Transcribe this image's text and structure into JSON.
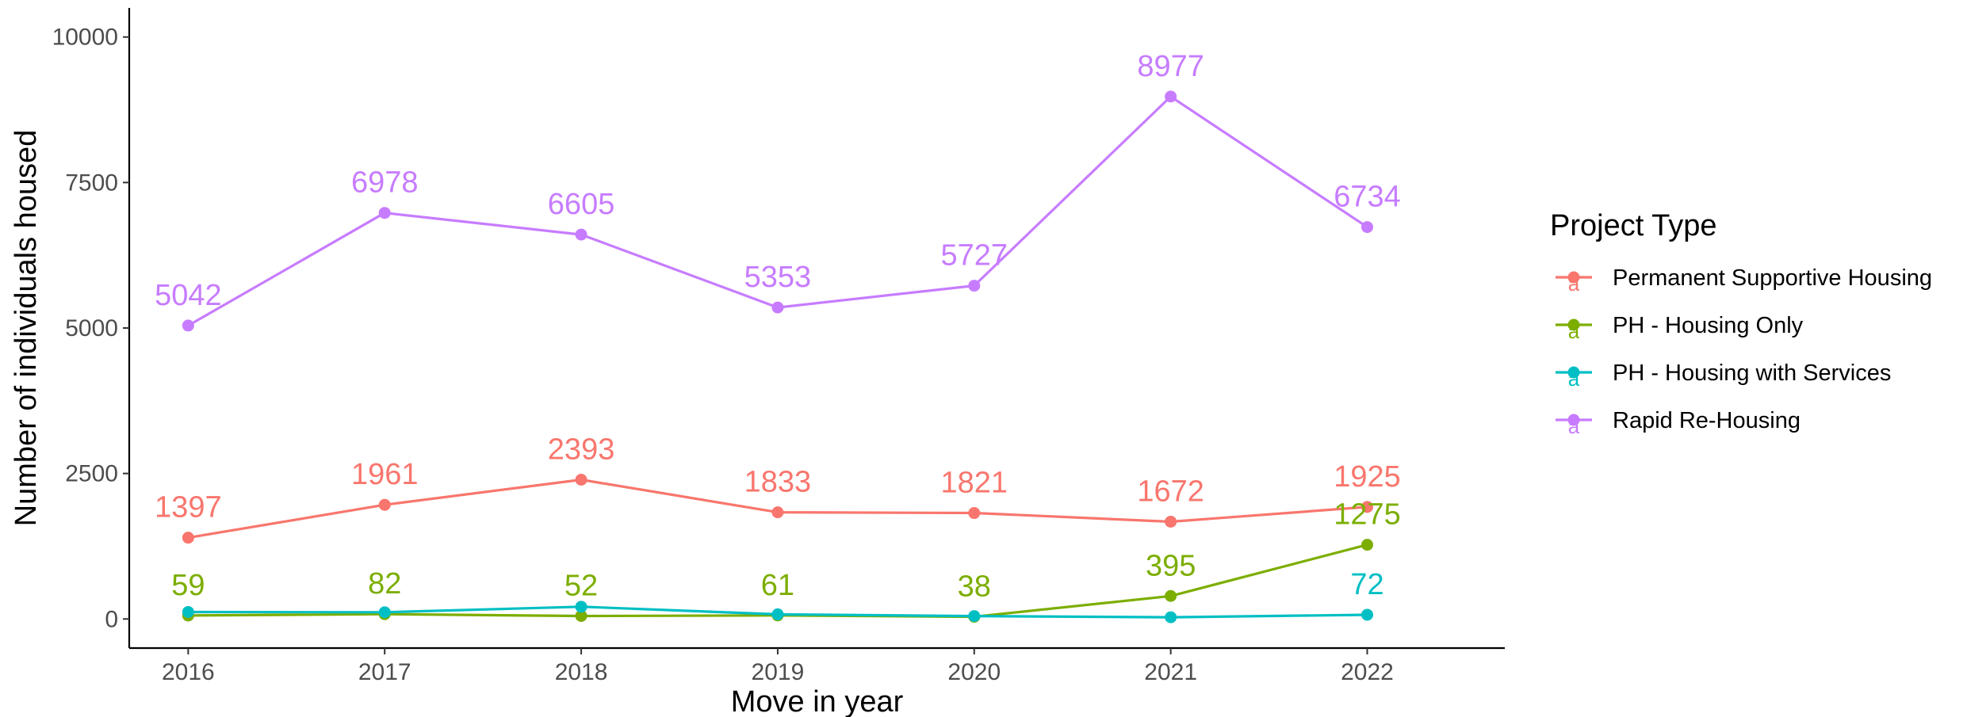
{
  "chart_data": {
    "type": "line",
    "title": "",
    "xlabel": "Move in year",
    "ylabel": "Number of individuals housed",
    "x": [
      2016,
      2017,
      2018,
      2019,
      2020,
      2021,
      2022
    ],
    "x_ticks": [
      "2016",
      "2017",
      "2018",
      "2019",
      "2020",
      "2021",
      "2022"
    ],
    "y_ticks": [
      "0",
      "2500",
      "5000",
      "7500",
      "10000"
    ],
    "xlim": [
      2015.7,
      2022.7
    ],
    "ylim": [
      -500,
      10500
    ],
    "grid": false,
    "legend": {
      "title": "Project Type",
      "placement": "right"
    },
    "series": [
      {
        "name": "Permanent Supportive Housing",
        "color": "#F8766D",
        "values": [
          1397,
          1961,
          2393,
          1833,
          1821,
          1672,
          1925
        ],
        "labels": [
          "1397",
          "1961",
          "2393",
          "1833",
          "1821",
          "1672",
          "1925"
        ]
      },
      {
        "name": "PH - Housing Only",
        "color": "#7CAE00",
        "values": [
          59,
          82,
          52,
          61,
          38,
          395,
          1275
        ],
        "labels": [
          "59",
          "82",
          "52",
          "61",
          "38",
          "395",
          "1275"
        ]
      },
      {
        "name": "PH - Housing with Services",
        "color": "#00BFC4",
        "values": [
          120,
          115,
          210,
          80,
          50,
          30,
          72
        ],
        "labels": [
          "",
          "",
          "",
          "",
          "",
          "",
          "72"
        ]
      },
      {
        "name": "Rapid Re-Housing",
        "color": "#C77CFF",
        "values": [
          5042,
          6978,
          6605,
          5353,
          5727,
          8977,
          6734
        ],
        "labels": [
          "5042",
          "6978",
          "6605",
          "5353",
          "5727",
          "8977",
          "6734"
        ]
      }
    ]
  }
}
